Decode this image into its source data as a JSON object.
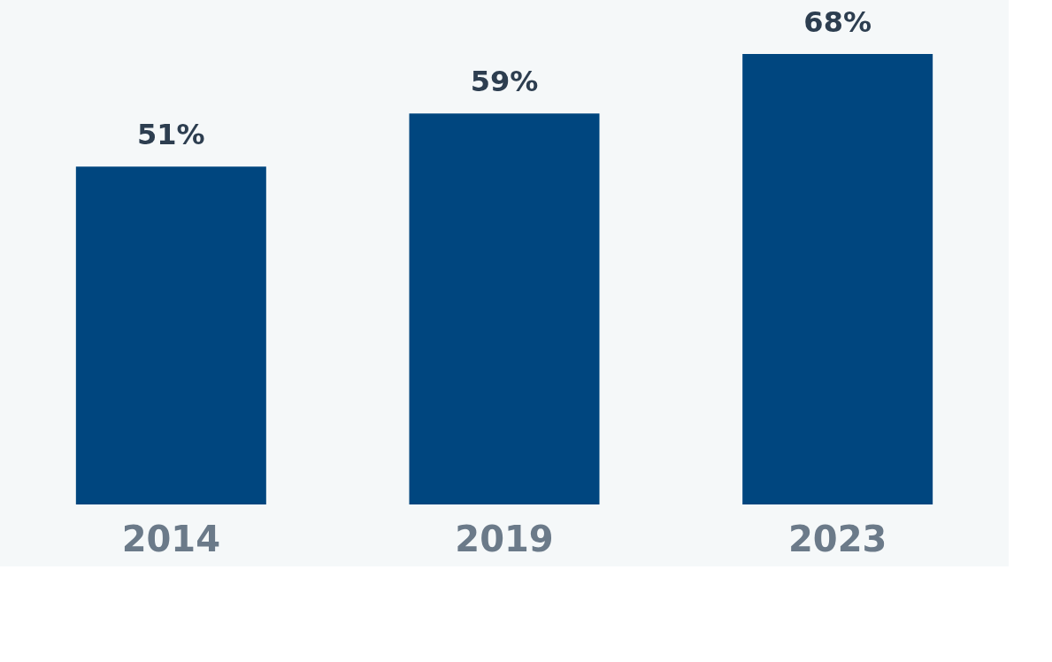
{
  "chart_data": {
    "type": "bar",
    "categories": [
      "2014",
      "2019",
      "2023"
    ],
    "values": [
      51,
      59,
      68
    ],
    "value_labels": [
      "51%",
      "59%",
      "68%"
    ],
    "color": "#00467f"
  }
}
